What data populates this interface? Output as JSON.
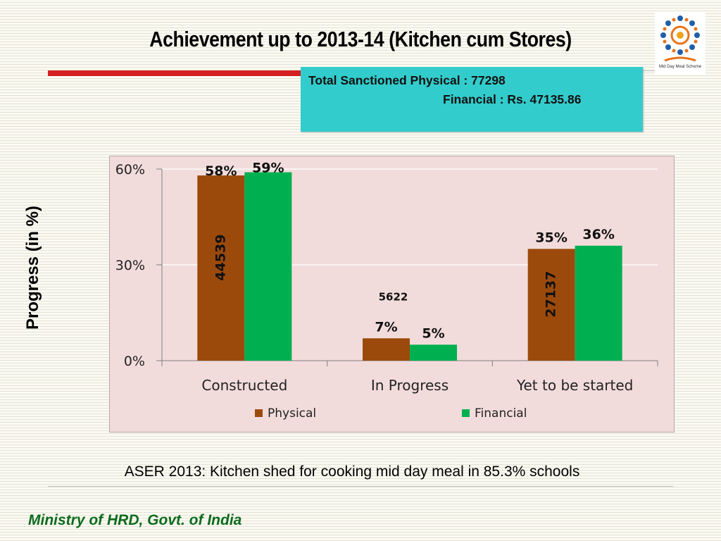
{
  "slide": {
    "title": "Achievement up to 2013-14 (Kitchen cum Stores)",
    "info_line1": "Total Sanctioned Physical :  77298",
    "info_line2": "Financial : Rs. 47135.86",
    "logo_caption": "Mid Day Meal Scheme",
    "footnote": "ASER 2013: Kitchen shed for cooking mid day meal in 85.3% schools",
    "footer": "Ministry of HRD, Govt. of India"
  },
  "colors": {
    "physical": "#9b4a0c",
    "financial": "#00b050",
    "info_box": "#33cccc",
    "title_bar": "#d42020",
    "footer_text": "#0c6b1d",
    "plot_background": "#f2dcdb"
  },
  "chart_data": {
    "type": "bar",
    "title": "",
    "ylabel": "Progress (in %)",
    "xlabel": "",
    "ylim": [
      0,
      60
    ],
    "yticks": [
      "0%",
      "30%",
      "60%"
    ],
    "ytick_values": [
      0,
      30,
      60
    ],
    "grid": true,
    "legend_position": "bottom",
    "categories": [
      "Constructed",
      "In Progress",
      "Yet to be started"
    ],
    "series": [
      {
        "name": "Physical",
        "values": [
          58,
          7,
          35
        ],
        "labels": [
          "58%",
          "7%",
          "35%"
        ],
        "counts": [
          "44539",
          "5622",
          "27137"
        ]
      },
      {
        "name": "Financial",
        "values": [
          59,
          5,
          36
        ],
        "labels": [
          "59%",
          "5%",
          "36%"
        ]
      }
    ]
  }
}
